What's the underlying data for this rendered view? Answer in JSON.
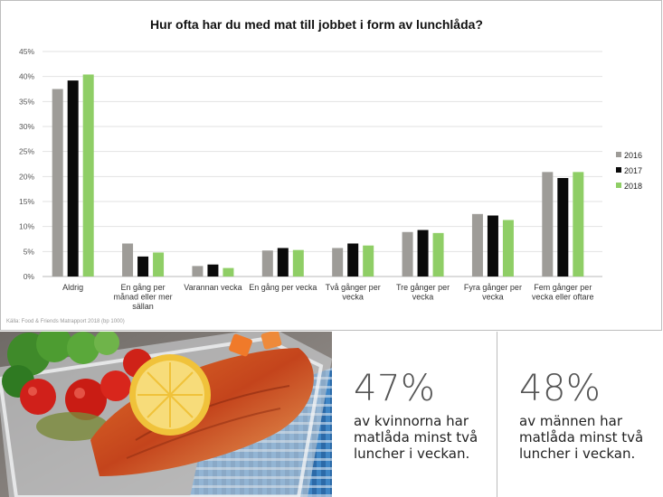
{
  "chart_data": {
    "type": "bar",
    "title": "Hur ofta har du med mat till jobbet i form av lunchlåda?",
    "categories": [
      [
        "Aldrig"
      ],
      [
        "En gång per",
        "månad eller mer",
        "sällan"
      ],
      [
        "Varannan vecka"
      ],
      [
        "En gång per vecka"
      ],
      [
        "Två gånger per",
        "vecka"
      ],
      [
        "Tre gånger per",
        "vecka"
      ],
      [
        "Fyra gånger per",
        "vecka"
      ],
      [
        "Fem gånger per",
        "vecka eller oftare"
      ]
    ],
    "series": [
      {
        "name": "2016",
        "color": "#9e9c98",
        "values": [
          37.5,
          6.6,
          2.1,
          5.2,
          5.7,
          8.9,
          12.5,
          20.9
        ]
      },
      {
        "name": "2017",
        "color": "#0a0a0a",
        "values": [
          39.2,
          4.0,
          2.4,
          5.7,
          6.6,
          9.3,
          12.2,
          19.7
        ]
      },
      {
        "name": "2018",
        "color": "#8fce66",
        "values": [
          40.4,
          4.8,
          1.7,
          5.3,
          6.2,
          8.7,
          11.3,
          20.9
        ]
      }
    ],
    "yticks": [
      "0%",
      "5%",
      "10%",
      "15%",
      "20%",
      "25%",
      "30%",
      "35%",
      "40%",
      "45%"
    ],
    "ylim": [
      0,
      45
    ],
    "grid": true,
    "legend": "right"
  },
  "source": "Källa: Food & Friends Matrapport 2018 (bp 1000)",
  "stats": [
    {
      "pct": "47%",
      "lines": [
        "av kvinnorna har",
        "matlåda minst två",
        "luncher i veckan."
      ]
    },
    {
      "pct": "48%",
      "lines": [
        "av männen har",
        "matlåda minst två",
        "luncher i veckan."
      ]
    }
  ],
  "photo": {
    "icon": "lunchbox-salmon-photo"
  }
}
